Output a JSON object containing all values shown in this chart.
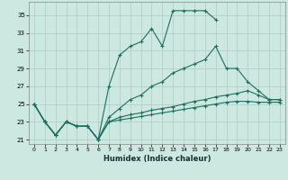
{
  "xlabel": "Humidex (Indice chaleur)",
  "background_color": "#cce8e0",
  "grid_color": "#aaccC4",
  "line_color": "#1a7060",
  "xlim": [
    -0.5,
    23.5
  ],
  "ylim": [
    20.5,
    36.5
  ],
  "xticks": [
    0,
    1,
    2,
    3,
    4,
    5,
    6,
    7,
    8,
    9,
    10,
    11,
    12,
    13,
    14,
    15,
    16,
    17,
    18,
    19,
    20,
    21,
    22,
    23
  ],
  "yticks": [
    21,
    23,
    25,
    27,
    29,
    31,
    33,
    35
  ],
  "lines": [
    {
      "x": [
        0,
        1,
        2,
        3,
        4,
        5,
        6,
        7,
        8,
        9,
        10,
        11,
        12,
        13,
        14,
        15,
        16,
        17
      ],
      "y": [
        25,
        23,
        21.5,
        23,
        22.5,
        22.5,
        21,
        27,
        30.5,
        31.5,
        32,
        33.5,
        31.5,
        35.5,
        35.5,
        35.5,
        35.5,
        34.5
      ]
    },
    {
      "x": [
        0,
        1,
        2,
        3,
        4,
        5,
        6,
        7,
        8,
        9,
        10,
        11,
        12,
        13,
        14,
        15,
        16,
        17,
        18,
        19,
        20,
        21,
        22,
        23
      ],
      "y": [
        25,
        23,
        21.5,
        23,
        22.5,
        22.5,
        21,
        23.5,
        24.5,
        25.5,
        26,
        27,
        27.5,
        28.5,
        29,
        29.5,
        30,
        31.5,
        29,
        29,
        27.5,
        26.5,
        25.5,
        25.5
      ]
    },
    {
      "x": [
        0,
        1,
        2,
        3,
        4,
        5,
        6,
        7,
        8,
        9,
        10,
        11,
        12,
        13,
        14,
        15,
        16,
        17,
        18,
        19,
        20,
        21,
        22,
        23
      ],
      "y": [
        25,
        23,
        21.5,
        23,
        22.5,
        22.5,
        21,
        23,
        23.5,
        23.8,
        24,
        24.3,
        24.5,
        24.7,
        25,
        25.3,
        25.5,
        25.8,
        26,
        26.2,
        26.5,
        26,
        25.5,
        25.5
      ]
    },
    {
      "x": [
        0,
        1,
        2,
        3,
        4,
        5,
        6,
        7,
        8,
        9,
        10,
        11,
        12,
        13,
        14,
        15,
        16,
        17,
        18,
        19,
        20,
        21,
        22,
        23
      ],
      "y": [
        25,
        23,
        21.5,
        23,
        22.5,
        22.5,
        21,
        23,
        23.2,
        23.4,
        23.6,
        23.8,
        24,
        24.2,
        24.4,
        24.6,
        24.8,
        25,
        25.2,
        25.3,
        25.3,
        25.2,
        25.2,
        25.2
      ]
    }
  ]
}
